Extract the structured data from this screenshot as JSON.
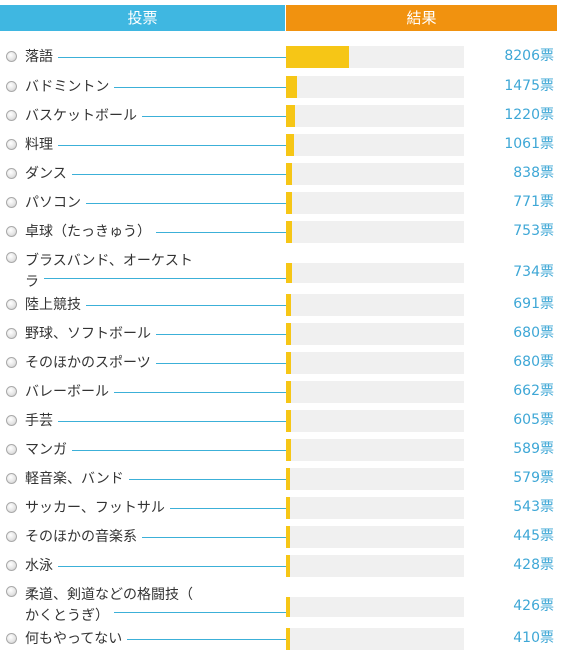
{
  "header": {
    "vote_label": "投票",
    "result_label": "結果"
  },
  "colors": {
    "vote_header": "#3fb7e1",
    "result_header": "#f1920f",
    "bar_fill": "#f6c616",
    "bar_track": "#f0f0f0",
    "count_text": "#3ea7d6",
    "leader_line": "#3cb0d8"
  },
  "max_votes": 8206,
  "options": [
    {
      "label": "落語",
      "votes": 8206,
      "count_text": "8206票"
    },
    {
      "label": "バドミントン",
      "votes": 1475,
      "count_text": "1475票"
    },
    {
      "label": "バスケットボール",
      "votes": 1220,
      "count_text": "1220票"
    },
    {
      "label": "料理",
      "votes": 1061,
      "count_text": "1061票"
    },
    {
      "label": "ダンス",
      "votes": 838,
      "count_text": "838票"
    },
    {
      "label": "パソコン",
      "votes": 771,
      "count_text": "771票"
    },
    {
      "label": "卓球（たっきゅう）",
      "votes": 753,
      "count_text": "753票"
    },
    {
      "label": "ブラスバンド、オーケストラ",
      "label_lines": [
        "ブラスバンド、オーケスト",
        "ラ"
      ],
      "votes": 734,
      "count_text": "734票"
    },
    {
      "label": "陸上競技",
      "votes": 691,
      "count_text": "691票"
    },
    {
      "label": "野球、ソフトボール",
      "votes": 680,
      "count_text": "680票"
    },
    {
      "label": "そのほかのスポーツ",
      "votes": 680,
      "count_text": "680票"
    },
    {
      "label": "バレーボール",
      "votes": 662,
      "count_text": "662票"
    },
    {
      "label": "手芸",
      "votes": 605,
      "count_text": "605票"
    },
    {
      "label": "マンガ",
      "votes": 589,
      "count_text": "589票"
    },
    {
      "label": "軽音楽、バンド",
      "votes": 579,
      "count_text": "579票"
    },
    {
      "label": "サッカー、フットサル",
      "votes": 543,
      "count_text": "543票"
    },
    {
      "label": "そのほかの音楽系",
      "votes": 445,
      "count_text": "445票"
    },
    {
      "label": "水泳",
      "votes": 428,
      "count_text": "428票"
    },
    {
      "label": "柔道、剣道などの格闘技（かくとうぎ）",
      "label_lines": [
        "柔道、剣道などの格闘技（",
        "かくとうぎ）"
      ],
      "votes": 426,
      "count_text": "426票"
    },
    {
      "label": "何もやってない",
      "votes": 410,
      "count_text": "410票"
    }
  ]
}
